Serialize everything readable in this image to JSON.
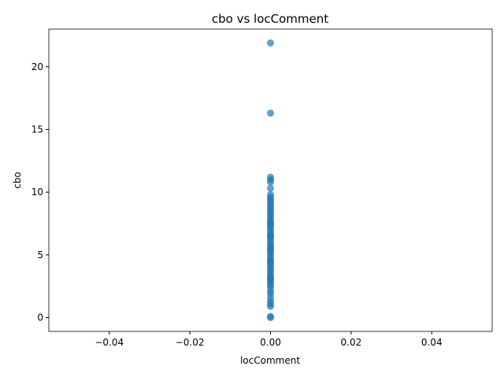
{
  "chart_data": {
    "type": "scatter",
    "title": "cbo vs locComment",
    "xlabel": "locComment",
    "ylabel": "cbo",
    "color": "#1f77b4",
    "alpha": 0.7,
    "x": [
      0,
      0,
      0,
      0,
      0,
      0,
      0,
      0,
      0,
      0,
      0,
      0,
      0,
      0,
      0,
      0,
      0,
      0,
      0,
      0,
      0,
      0,
      0,
      0,
      0,
      0,
      0,
      0,
      0,
      0,
      0,
      0,
      0,
      0,
      0,
      0,
      0,
      0,
      0,
      0,
      0,
      0,
      0,
      0,
      0,
      0,
      0,
      0,
      0,
      0,
      0,
      0,
      0,
      0,
      0,
      0,
      0
    ],
    "y": [
      0,
      0.1,
      0.9,
      1.1,
      1.3,
      1.6,
      1.9,
      2.1,
      2.4,
      2.6,
      2.8,
      3.0,
      3.2,
      3.4,
      3.6,
      3.8,
      4.0,
      4.2,
      4.4,
      4.6,
      4.8,
      5.0,
      5.2,
      5.4,
      5.6,
      5.8,
      6.0,
      6.2,
      6.4,
      6.6,
      6.8,
      7.0,
      7.2,
      7.4,
      7.6,
      7.8,
      8.0,
      8.2,
      8.4,
      8.6,
      8.8,
      9.0,
      9.2,
      9.4,
      9.6,
      9.8,
      10.3,
      10.8,
      11.0,
      11.2,
      16.3,
      21.9,
      3.1,
      4.5,
      5.5,
      6.5,
      7.5
    ],
    "xlim": [
      -0.055,
      0.055
    ],
    "ylim": [
      -1.1,
      23
    ],
    "xticks": [
      {
        "value": -0.04,
        "label": "−0.04"
      },
      {
        "value": -0.02,
        "label": "−0.02"
      },
      {
        "value": 0,
        "label": "0.00"
      },
      0.02,
      0.04
    ],
    "yticks": [
      0,
      5,
      10,
      15,
      20
    ]
  }
}
